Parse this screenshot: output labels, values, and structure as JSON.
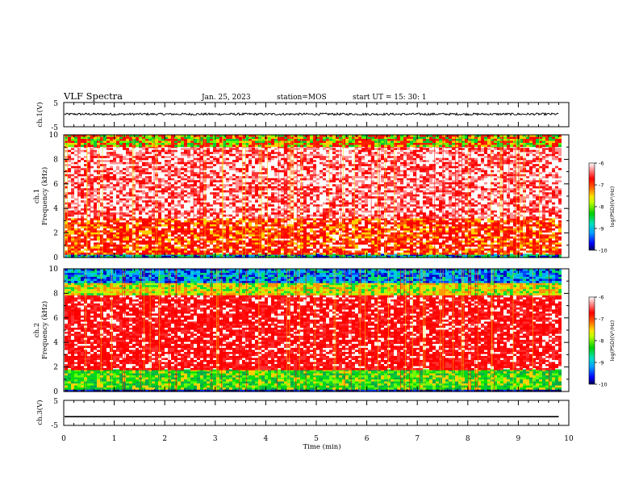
{
  "header": {
    "title": "VLF Spectra",
    "date": "Jan. 25, 2023",
    "station": "station=MOS",
    "start": "start UT =  15: 30: 1"
  },
  "colors": {
    "spectrogram_background": "#ffffff",
    "high_power": "#ff0000",
    "mid_power": "#ffd000",
    "low_power": "#00cc33",
    "lowest_power": "#0000aa"
  },
  "chart_data": [
    {
      "type": "line",
      "name": "ch1-waveform",
      "ylabel": "ch.1(V)",
      "ylim": [
        -5,
        5
      ],
      "y_ticks": [
        "5",
        "-5"
      ],
      "xlim": [
        0,
        10
      ],
      "trace": "noisy band near 0 V",
      "level": 0.2
    },
    {
      "type": "heatmap",
      "name": "ch1-spectrogram",
      "ylabel": "ch.1\nFrequency (kHz)",
      "ylim": [
        0,
        10
      ],
      "y_ticks": [
        "0",
        "2",
        "4",
        "6",
        "8",
        "10"
      ],
      "xlim": [
        0,
        10
      ],
      "data_end_min": 9.8,
      "bands": [
        {
          "from_khz": 0.0,
          "to_khz": 0.3,
          "level": "low"
        },
        {
          "from_khz": 0.3,
          "to_khz": 3.2,
          "level": "high-mixed"
        },
        {
          "from_khz": 3.2,
          "to_khz": 9.1,
          "level": "high-sparse"
        },
        {
          "from_khz": 9.1,
          "to_khz": 10.0,
          "level": "mid-mixed"
        }
      ],
      "colorbar": {
        "label": "log(PSD)(V²/Hz)",
        "ticks": [
          "-6",
          "-7",
          "-8",
          "-9",
          "-10"
        ],
        "range": [
          -10,
          -6
        ]
      }
    },
    {
      "type": "heatmap",
      "name": "ch2-spectrogram",
      "ylabel": "ch.2\nFrequency (kHz)",
      "ylim": [
        0,
        10
      ],
      "y_ticks": [
        "0",
        "2",
        "4",
        "6",
        "8",
        "10"
      ],
      "xlim": [
        0,
        10
      ],
      "data_end_min": 9.8,
      "bands": [
        {
          "from_khz": 0.0,
          "to_khz": 0.3,
          "level": "lowest"
        },
        {
          "from_khz": 0.3,
          "to_khz": 1.8,
          "level": "low-mid"
        },
        {
          "from_khz": 1.8,
          "to_khz": 8.0,
          "level": "high"
        },
        {
          "from_khz": 8.0,
          "to_khz": 9.0,
          "level": "mid"
        },
        {
          "from_khz": 9.0,
          "to_khz": 10.0,
          "level": "low-blue"
        }
      ],
      "colorbar": {
        "label": "log(PSD)(V²/Hz)",
        "ticks": [
          "-6",
          "-7",
          "-8",
          "-9",
          "-10"
        ],
        "range": [
          -10,
          -6
        ]
      }
    },
    {
      "type": "line",
      "name": "ch3-waveform",
      "ylabel": "ch.3(V)",
      "ylim": [
        -5,
        5
      ],
      "y_ticks": [
        "5",
        "-5"
      ],
      "xlim": [
        0,
        10
      ],
      "trace": "flat line",
      "level": -1.5
    }
  ],
  "x_axis": {
    "label": "Time (min)",
    "ticks": [
      "0",
      "1",
      "2",
      "3",
      "4",
      "5",
      "6",
      "7",
      "8",
      "9",
      "10"
    ]
  }
}
